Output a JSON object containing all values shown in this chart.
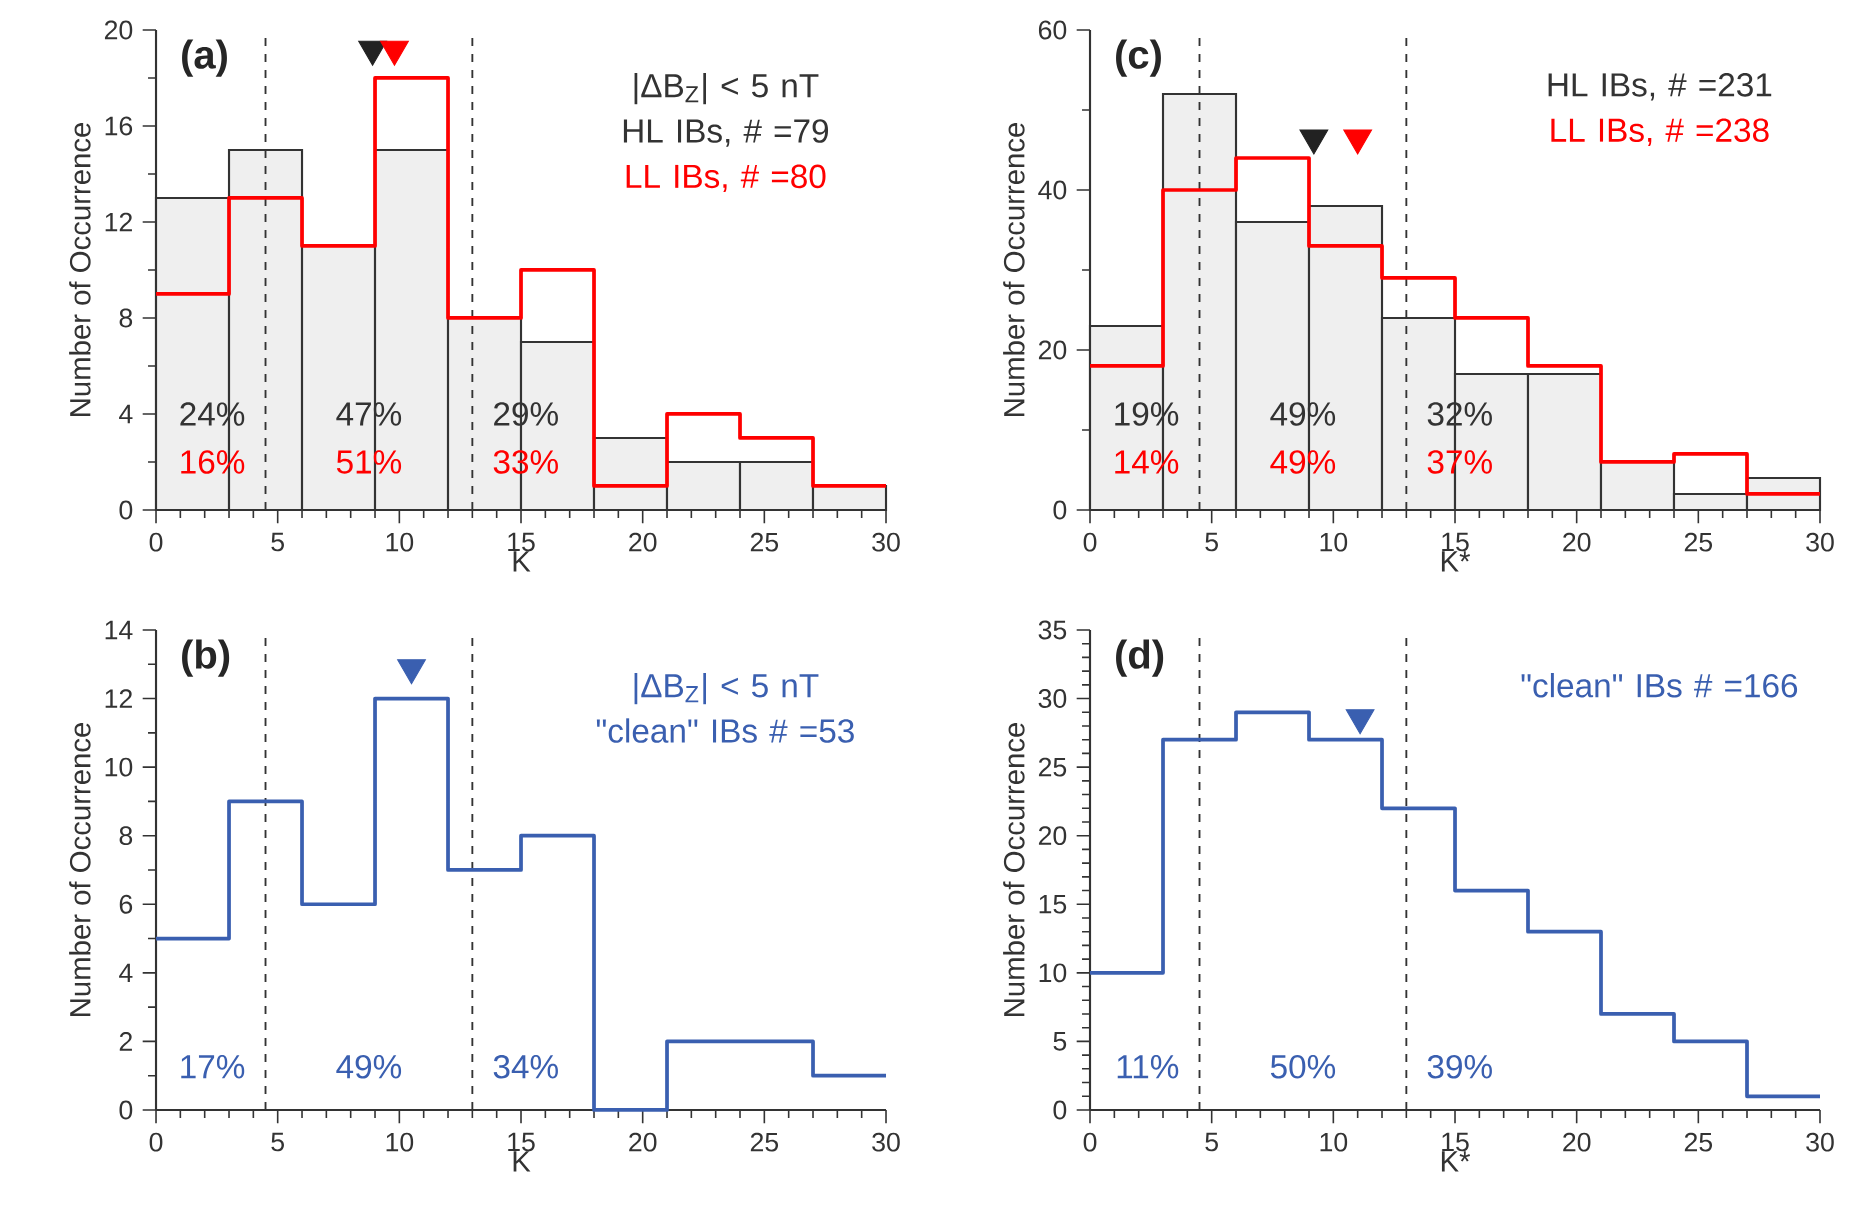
{
  "chart_data": [
    {
      "type": "histogram",
      "title": "(a)",
      "xlabel": "K",
      "ylabel": "Number of Occurrence",
      "bins": [
        0,
        3,
        6,
        9,
        12,
        15,
        18,
        21,
        24,
        27,
        30
      ],
      "series": [
        {
          "type": "histogram",
          "name": "HL IBs,  # =79",
          "color": "#333333",
          "values": [
            13,
            15,
            11,
            15,
            8,
            7,
            3,
            2,
            2,
            1
          ]
        },
        {
          "type": "histogram",
          "name": "LL IBs,  # =80",
          "color": "#ff0000",
          "values": [
            9,
            13,
            11,
            18,
            8,
            10,
            1,
            4,
            3,
            1
          ]
        },
        {
          "type": "scatter",
          "marker": "triangle",
          "color": "#222222",
          "x": [
            8.9
          ],
          "values": [
            19.2
          ]
        },
        {
          "type": "scatter",
          "marker": "triangle",
          "color": "#ff0000",
          "x": [
            9.8
          ],
          "values": [
            19.2
          ]
        }
      ],
      "xlim": [
        0,
        30
      ],
      "ylim": [
        0,
        20
      ],
      "xticks": [
        0,
        5,
        10,
        15,
        20,
        25,
        30
      ],
      "yticks": [
        0,
        4,
        8,
        12,
        16,
        20
      ],
      "ref_lines": [
        {
          "axis": "x",
          "value": 4.5,
          "line_style": "dashed",
          "color": "#333333"
        },
        {
          "axis": "x",
          "value": 13,
          "line_style": "dashed",
          "color": "#333333"
        }
      ],
      "annotations": [
        "|ΔB$_{Z}$| < 5 nT",
        "24%",
        "47%",
        "29%",
        "16%",
        "51%",
        "33%"
      ]
    },
    {
      "type": "histogram",
      "title": "(c)",
      "xlabel": "K*",
      "ylabel": "Number of Occurrence",
      "bins": [
        0,
        3,
        6,
        9,
        12,
        15,
        18,
        21,
        24,
        27,
        30
      ],
      "series": [
        {
          "type": "histogram",
          "name": "HL IBs,  # =231",
          "color": "#333333",
          "values": [
            23,
            52,
            36,
            38,
            24,
            17,
            17,
            6,
            2,
            4
          ]
        },
        {
          "type": "histogram",
          "name": "LL IBs,  # =238",
          "color": "#ff0000",
          "values": [
            18,
            40,
            44,
            33,
            29,
            24,
            18,
            6,
            7,
            2
          ]
        },
        {
          "type": "scatter",
          "marker": "triangle",
          "color": "#222222",
          "x": [
            9.2
          ],
          "values": [
            46.5
          ]
        },
        {
          "type": "scatter",
          "marker": "triangle",
          "color": "#ff0000",
          "x": [
            11
          ],
          "values": [
            46.5
          ]
        }
      ],
      "xlim": [
        0,
        30
      ],
      "ylim": [
        0,
        60
      ],
      "xticks": [
        0,
        5,
        10,
        15,
        20,
        25,
        30
      ],
      "yticks": [
        0,
        20,
        40,
        60
      ],
      "ref_lines": [
        {
          "axis": "x",
          "value": 4.5,
          "line_style": "dashed",
          "color": "#333333"
        },
        {
          "axis": "x",
          "value": 13,
          "line_style": "dashed",
          "color": "#333333"
        }
      ],
      "annotations": [
        "19%",
        "49%",
        "32%",
        "14%",
        "49%",
        "37%"
      ]
    },
    {
      "type": "histogram",
      "title": "(b)",
      "xlabel": "K",
      "ylabel": "Number of Occurrence",
      "bins": [
        0,
        3,
        6,
        9,
        12,
        15,
        18,
        21,
        24,
        27,
        30
      ],
      "series": [
        {
          "type": "histogram",
          "name": "\"clean\" IBs # =53",
          "color": "#3a5fb0",
          "values": [
            5,
            9,
            6,
            12,
            7,
            8,
            0,
            2,
            2,
            1
          ]
        },
        {
          "type": "scatter",
          "marker": "triangle",
          "color": "#3a5fb0",
          "x": [
            10.5
          ],
          "values": [
            12.9
          ]
        }
      ],
      "xlim": [
        0,
        30
      ],
      "ylim": [
        0,
        14
      ],
      "xticks": [
        0,
        5,
        10,
        15,
        20,
        25,
        30
      ],
      "yticks": [
        0,
        2,
        4,
        6,
        8,
        10,
        12,
        14
      ],
      "ref_lines": [
        {
          "axis": "x",
          "value": 4.5,
          "line_style": "dashed",
          "color": "#333333"
        },
        {
          "axis": "x",
          "value": 13,
          "line_style": "dashed",
          "color": "#333333"
        }
      ],
      "annotations": [
        "|ΔB$_{Z}$| < 5 nT",
        "17%",
        "49%",
        "34%"
      ]
    },
    {
      "type": "histogram",
      "title": "(d)",
      "xlabel": "K*",
      "ylabel": "Number of Occurrence",
      "bins": [
        0,
        3,
        6,
        9,
        12,
        15,
        18,
        21,
        24,
        27,
        30
      ],
      "series": [
        {
          "type": "histogram",
          "name": "\"clean\" IBs # =166",
          "color": "#3a5fb0",
          "values": [
            10,
            27,
            29,
            27,
            22,
            16,
            13,
            7,
            5,
            1
          ]
        },
        {
          "type": "scatter",
          "marker": "triangle",
          "color": "#3a5fb0",
          "x": [
            11.1
          ],
          "values": [
            28.6
          ]
        }
      ],
      "xlim": [
        0,
        30
      ],
      "ylim": [
        0,
        35
      ],
      "xticks": [
        0,
        5,
        10,
        15,
        20,
        25,
        30
      ],
      "yticks": [
        0,
        5,
        10,
        15,
        20,
        25,
        30,
        35
      ],
      "ref_lines": [
        {
          "axis": "x",
          "value": 4.5,
          "line_style": "dashed",
          "color": "#333333"
        },
        {
          "axis": "x",
          "value": 13,
          "line_style": "dashed",
          "color": "#333333"
        }
      ],
      "annotations": [
        "11%",
        "50%",
        "39%"
      ]
    }
  ]
}
